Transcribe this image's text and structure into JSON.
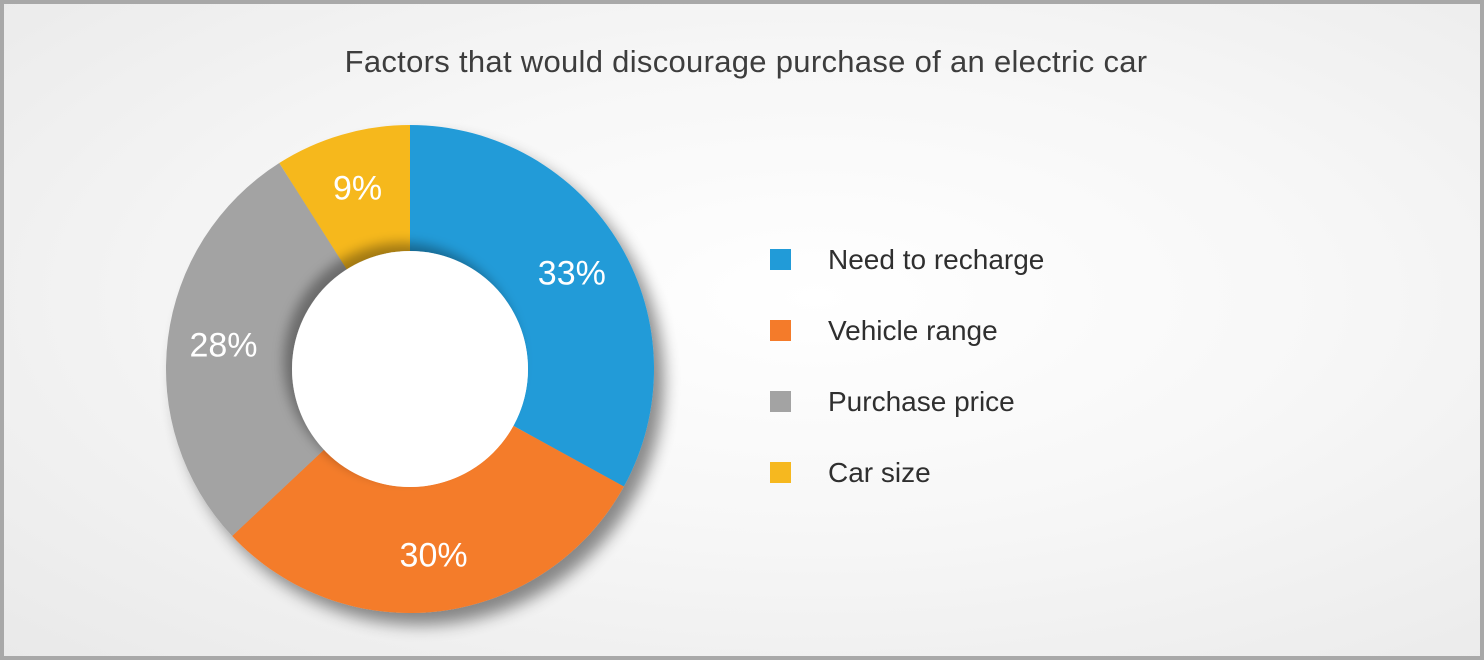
{
  "chart_data": {
    "type": "pie",
    "donut": true,
    "title": "Factors that would discourage purchase of an electric car",
    "legend_position": "right",
    "series": [
      {
        "name": "Need to recharge",
        "value": 33,
        "label": "33%",
        "color": "#219bd8"
      },
      {
        "name": "Vehicle range",
        "value": 30,
        "label": "30%",
        "color": "#f47b2a"
      },
      {
        "name": "Purchase price",
        "value": 28,
        "label": "28%",
        "color": "#a3a3a3"
      },
      {
        "name": "Car size",
        "value": 9,
        "label": "9%",
        "color": "#f6b81f"
      }
    ]
  }
}
